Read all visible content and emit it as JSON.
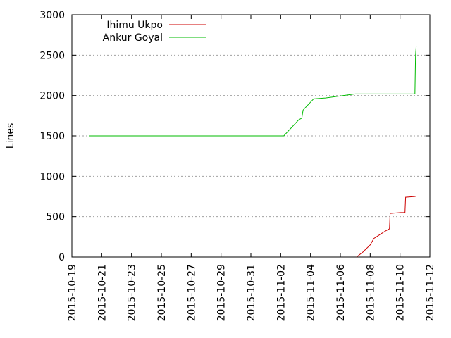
{
  "chart_data": {
    "type": "line",
    "title": "",
    "xlabel": "",
    "ylabel": "Lines",
    "xlim": [
      "2015-10-19",
      "2015-11-12"
    ],
    "ylim": [
      0,
      3000
    ],
    "x_ticks": [
      "2015-10-19",
      "2015-10-21",
      "2015-10-23",
      "2015-10-25",
      "2015-10-27",
      "2015-10-29",
      "2015-10-31",
      "2015-11-02",
      "2015-11-04",
      "2015-11-06",
      "2015-11-08",
      "2015-11-10",
      "2015-11-12"
    ],
    "y_ticks": [
      0,
      500,
      1000,
      1500,
      2000,
      2500,
      3000
    ],
    "grid": true,
    "legend_position": "top-left",
    "series": [
      {
        "name": "Ihimu Ukpo",
        "color": "#cc0000",
        "points": [
          [
            "2015-11-07 02:00",
            0
          ],
          [
            "2015-11-07 12:00",
            60
          ],
          [
            "2015-11-08 00:00",
            150
          ],
          [
            "2015-11-08 06:00",
            230
          ],
          [
            "2015-11-08 12:00",
            260
          ],
          [
            "2015-11-09 00:00",
            320
          ],
          [
            "2015-11-09 07:00",
            350
          ],
          [
            "2015-11-09 08:00",
            540
          ],
          [
            "2015-11-10 01:00",
            550
          ],
          [
            "2015-11-10 08:00",
            550
          ],
          [
            "2015-11-10 09:00",
            740
          ],
          [
            "2015-11-11 01:00",
            750
          ]
        ]
      },
      {
        "name": "Ankur Goyal",
        "color": "#00bb00",
        "points": [
          [
            "2015-10-20 04:00",
            1500
          ],
          [
            "2015-11-02 05:00",
            1500
          ],
          [
            "2015-11-03 05:00",
            1700
          ],
          [
            "2015-11-03 10:00",
            1720
          ],
          [
            "2015-11-03 12:00",
            1820
          ],
          [
            "2015-11-04 05:00",
            1960
          ],
          [
            "2015-11-05 00:00",
            1970
          ],
          [
            "2015-11-07 00:00",
            2020
          ],
          [
            "2015-11-11 00:00",
            2020
          ],
          [
            "2015-11-11 01:00",
            2500
          ],
          [
            "2015-11-11 02:00",
            2610
          ]
        ]
      }
    ]
  }
}
